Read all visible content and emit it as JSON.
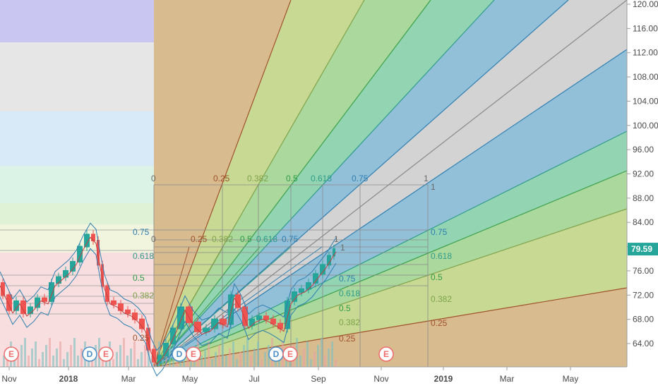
{
  "chart_data": {
    "type": "line",
    "x_ticks": [
      "Nov",
      "2018",
      "Mar",
      "May",
      "Jul",
      "Sep",
      "Nov",
      "2019",
      "Mar",
      "May"
    ],
    "y_ticks": [
      64,
      68,
      72,
      76,
      80,
      84,
      88,
      92,
      96,
      100,
      104,
      108,
      112,
      116,
      120
    ],
    "y_tick_labels": [
      "64.00",
      "68.00",
      "72.00",
      "76.00",
      "80.00",
      "84.00",
      "88.00",
      "92.00",
      "96.00",
      "100.00",
      "104.00",
      "108.00",
      "112.00",
      "116.00",
      "120.00"
    ],
    "ylim": [
      60.3,
      120.8
    ],
    "last_price": "79.59",
    "last_price_value": 79.59,
    "price_series": {
      "x": [
        0,
        8,
        18,
        28,
        38,
        48,
        58,
        68,
        78,
        88,
        98,
        108,
        118,
        128,
        136,
        142,
        148,
        156,
        166,
        176,
        186,
        196,
        206,
        214,
        222,
        230,
        240,
        250,
        262,
        274,
        286,
        298,
        310,
        322,
        332,
        342,
        352,
        362,
        372,
        382,
        392,
        402,
        412,
        422,
        432,
        442,
        452,
        462,
        470,
        476
      ],
      "y": [
        74,
        72,
        69.5,
        71,
        69,
        70,
        71.5,
        71,
        74,
        75,
        76,
        77.5,
        80,
        82,
        81,
        77,
        73.5,
        71,
        70.5,
        69.5,
        69,
        68,
        66.5,
        63,
        61,
        62,
        64,
        66.5,
        70,
        67.5,
        66,
        66.5,
        68,
        67.2,
        72,
        70,
        67,
        68,
        68.5,
        68,
        67.3,
        66.5,
        71,
        72.5,
        73,
        74,
        75.5,
        77,
        78.5,
        79.6
      ]
    },
    "fib_levels": [
      "0",
      "0.25",
      "0.382",
      "0.5",
      "0.618",
      "0.75",
      "1"
    ],
    "fib_label_rows": [
      {
        "labels": [
          "0",
          "0.25",
          "0.382",
          "0.5",
          "0.618",
          "0.75",
          "1"
        ]
      },
      {
        "labels": [
          "0",
          "0.25",
          "0.382",
          "0.5",
          "0.618",
          "0.75",
          "1"
        ]
      }
    ],
    "fan_labels_right": [
      "1",
      "0.75",
      "0.618",
      "0.5",
      "0.382",
      "0.25"
    ],
    "fan_labels_inner": [
      "1",
      "0.75",
      "0.618",
      "0.5",
      "0.382",
      "0.25"
    ],
    "left_fib_labels": [
      "0.75",
      "0.618",
      "0.5",
      "0.382",
      "0.25"
    ],
    "event_markers": [
      {
        "label": "E",
        "type": "earnings"
      },
      {
        "label": "D",
        "type": "dividend"
      },
      {
        "label": "E",
        "type": "earnings"
      },
      {
        "label": "D",
        "type": "dividend"
      },
      {
        "label": "E",
        "type": "earnings"
      },
      {
        "label": "D",
        "type": "dividend"
      },
      {
        "label": "E",
        "type": "earnings"
      },
      {
        "label": "E",
        "type": "earnings"
      }
    ],
    "colors": {
      "level_0_25": "#d8b98a",
      "level_0_382": "#c7d98f",
      "level_0_5": "#a9d89a",
      "level_0_618": "#8fd4b0",
      "level_0_75": "#8fbfd9",
      "level_1": "#d3d3d3",
      "price_up": "#26a69a",
      "price_down": "#ef5350",
      "last_price_badge": "#26a69a",
      "earnings": "#ef6c6c",
      "dividend": "#4a8fc7"
    }
  }
}
